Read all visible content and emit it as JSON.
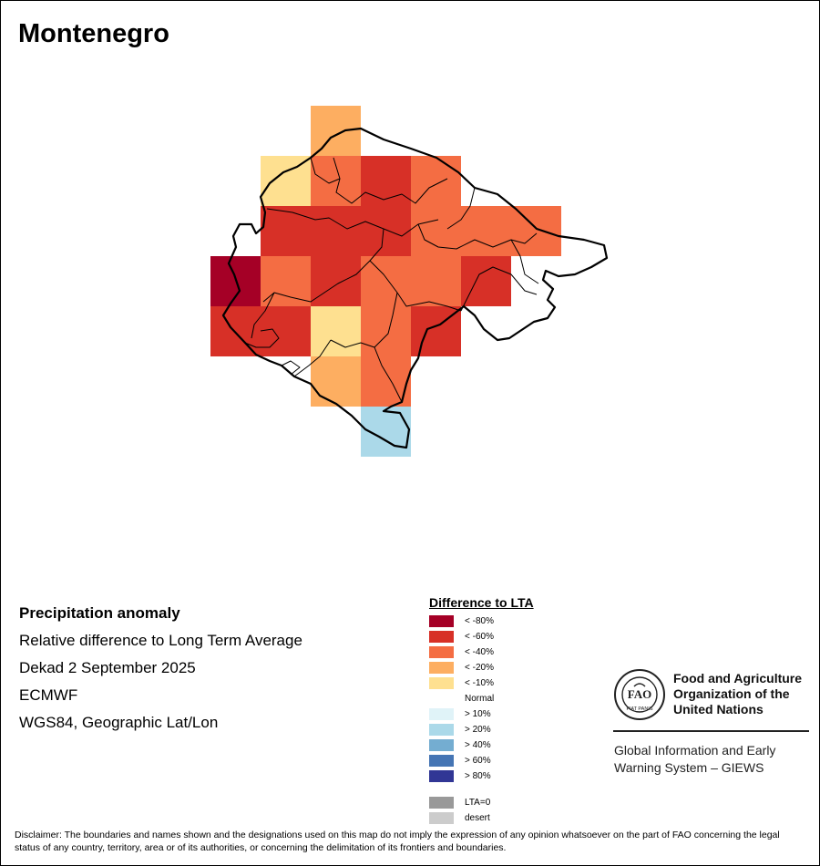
{
  "title": "Montenegro",
  "info": {
    "product": "Precipitation anomaly",
    "description": "Relative difference to Long Term Average",
    "period": "Dekad 2 September 2025",
    "source": "ECMWF",
    "projection": "WGS84, Geographic Lat/Lon"
  },
  "legend": {
    "title": "Difference to LTA",
    "classes": [
      {
        "label": "< -80%",
        "color": "#a50026"
      },
      {
        "label": "< -60%",
        "color": "#d73027"
      },
      {
        "label": "< -40%",
        "color": "#f46d43"
      },
      {
        "label": "< -20%",
        "color": "#fdae61"
      },
      {
        "label": "< -10%",
        "color": "#fee090"
      },
      {
        "label": "Normal",
        "color": "#ffffff"
      },
      {
        "label": "> 10%",
        "color": "#e0f3f8"
      },
      {
        "label": "> 20%",
        "color": "#abd9e9"
      },
      {
        "label": "> 40%",
        "color": "#74add1"
      },
      {
        "label": "> 60%",
        "color": "#4575b4"
      },
      {
        "label": "> 80%",
        "color": "#313695"
      }
    ],
    "extra": [
      {
        "label": "LTA=0",
        "color": "#999999"
      },
      {
        "label": "desert",
        "color": "#cccccc"
      }
    ]
  },
  "grid_cells": [
    {
      "row": 0,
      "col": 2,
      "class": "< -20%"
    },
    {
      "row": 1,
      "col": 1,
      "class": "< -10%"
    },
    {
      "row": 1,
      "col": 2,
      "class": "< -40%"
    },
    {
      "row": 1,
      "col": 3,
      "class": "< -60%"
    },
    {
      "row": 1,
      "col": 4,
      "class": "< -40%"
    },
    {
      "row": 2,
      "col": 1,
      "class": "< -60%"
    },
    {
      "row": 2,
      "col": 2,
      "class": "< -60%"
    },
    {
      "row": 2,
      "col": 3,
      "class": "< -60%"
    },
    {
      "row": 2,
      "col": 4,
      "class": "< -40%"
    },
    {
      "row": 2,
      "col": 5,
      "class": "< -40%"
    },
    {
      "row": 2,
      "col": 6,
      "class": "< -40%"
    },
    {
      "row": 3,
      "col": 0,
      "class": "< -80%"
    },
    {
      "row": 3,
      "col": 1,
      "class": "< -40%"
    },
    {
      "row": 3,
      "col": 2,
      "class": "< -60%"
    },
    {
      "row": 3,
      "col": 3,
      "class": "< -40%"
    },
    {
      "row": 3,
      "col": 4,
      "class": "< -40%"
    },
    {
      "row": 3,
      "col": 5,
      "class": "< -60%"
    },
    {
      "row": 4,
      "col": 0,
      "class": "< -60%"
    },
    {
      "row": 4,
      "col": 1,
      "class": "< -60%"
    },
    {
      "row": 4,
      "col": 2,
      "class": "< -10%"
    },
    {
      "row": 4,
      "col": 3,
      "class": "< -40%"
    },
    {
      "row": 4,
      "col": 4,
      "class": "< -60%"
    },
    {
      "row": 5,
      "col": 2,
      "class": "< -20%"
    },
    {
      "row": 5,
      "col": 3,
      "class": "< -40%"
    },
    {
      "row": 6,
      "col": 3,
      "class": "> 20%"
    }
  ],
  "organization": {
    "name_lines": [
      "Food and Agriculture",
      "Organization of the",
      "United Nations"
    ],
    "logo_text": "FIAT PANIS",
    "program_lines": [
      "Global Information and Early",
      "Warning System – GIEWS"
    ]
  },
  "disclaimer": "Disclaimer: The boundaries and names shown and the designations used on this map do not imply the expression of any opinion whatsoever on the part of FAO concerning the legal status of any country, territory, area or of its authorities, or concerning the delimitation of its frontiers and boundaries."
}
